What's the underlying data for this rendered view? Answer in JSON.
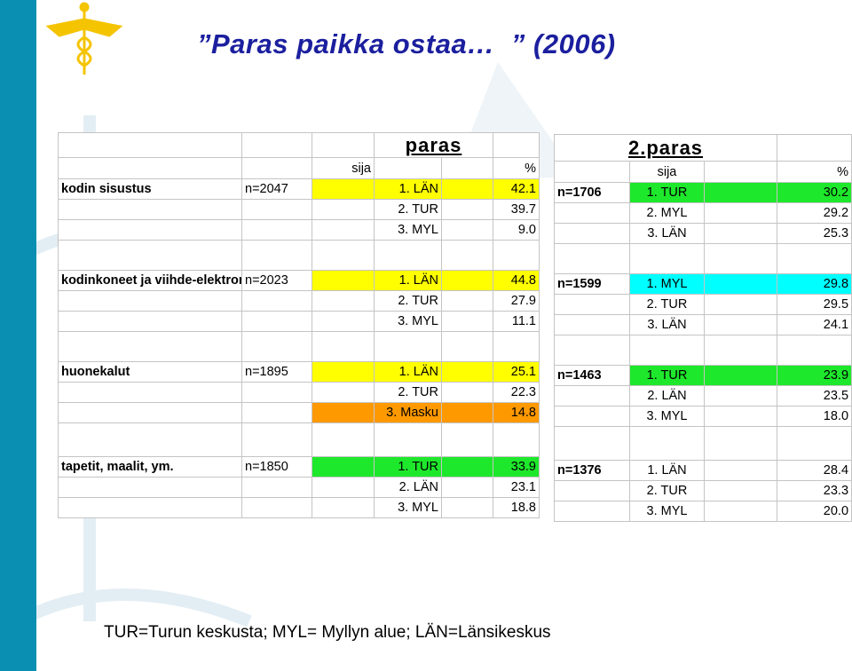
{
  "title": "”Paras paikka ostaa…  ” (2006)",
  "legend": "TUR=Turun keskusta; MYL= Myllyn alue; LÄN=Länsikeskus",
  "left": {
    "heading": "paras",
    "sija_label": "sija",
    "pct_label": "%",
    "categories": [
      {
        "name": "kodin sisustus",
        "n": "n=2047",
        "rows": [
          {
            "rank": "1. LÄN",
            "pct": "42.1",
            "color": "#ffff00"
          },
          {
            "rank": "2. TUR",
            "pct": "39.7",
            "color": ""
          },
          {
            "rank": "3. MYL",
            "pct": "9.0",
            "color": ""
          }
        ]
      },
      {
        "name": "kodinkoneet ja viihde-elektroniikka",
        "n": "n=2023",
        "rows": [
          {
            "rank": "1. LÄN",
            "pct": "44.8",
            "color": "#ffff00"
          },
          {
            "rank": "2. TUR",
            "pct": "27.9",
            "color": ""
          },
          {
            "rank": "3. MYL",
            "pct": "11.1",
            "color": ""
          }
        ]
      },
      {
        "name": "huonekalut",
        "n": "n=1895",
        "rows": [
          {
            "rank": "1. LÄN",
            "pct": "25.1",
            "color": "#ffff00"
          },
          {
            "rank": "2. TUR",
            "pct": "22.3",
            "color": ""
          },
          {
            "rank": "3. Masku",
            "pct": "14.8",
            "color": "#ff9900"
          }
        ]
      },
      {
        "name": "tapetit, maalit, ym.",
        "n": "n=1850",
        "rows": [
          {
            "rank": "1. TUR",
            "pct": "33.9",
            "color": "#1ee82b"
          },
          {
            "rank": "2. LÄN",
            "pct": "23.1",
            "color": ""
          },
          {
            "rank": "3. MYL",
            "pct": "18.8",
            "color": ""
          }
        ]
      }
    ]
  },
  "right": {
    "heading": "2.paras",
    "sija_label": "sija",
    "pct_label": "%",
    "categories": [
      {
        "n": "n=1706",
        "rows": [
          {
            "rank": "1. TUR",
            "pct": "30.2",
            "color": "#1ee82b"
          },
          {
            "rank": "2. MYL",
            "pct": "29.2",
            "color": ""
          },
          {
            "rank": "3. LÄN",
            "pct": "25.3",
            "color": ""
          }
        ]
      },
      {
        "n": "n=1599",
        "rows": [
          {
            "rank": "1. MYL",
            "pct": "29.8",
            "color": "#00ffff"
          },
          {
            "rank": "2. TUR",
            "pct": "29.5",
            "color": ""
          },
          {
            "rank": "3. LÄN",
            "pct": "24.1",
            "color": ""
          }
        ]
      },
      {
        "n": "n=1463",
        "rows": [
          {
            "rank": "1. TUR",
            "pct": "23.9",
            "color": "#1ee82b"
          },
          {
            "rank": "2. LÄN",
            "pct": "23.5",
            "color": ""
          },
          {
            "rank": "3. MYL",
            "pct": "18.0",
            "color": ""
          }
        ]
      },
      {
        "n": "n=1376",
        "rows": [
          {
            "rank": "1. LÄN",
            "pct": "28.4",
            "color": ""
          },
          {
            "rank": "2. TUR",
            "pct": "23.3",
            "color": ""
          },
          {
            "rank": "3. MYL",
            "pct": "20.0",
            "color": ""
          }
        ]
      }
    ]
  }
}
